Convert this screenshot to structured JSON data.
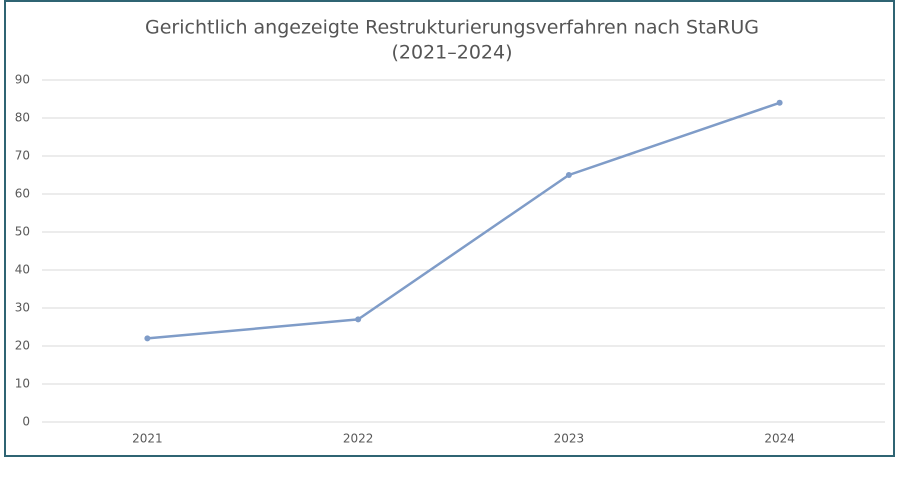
{
  "chart_data": {
    "type": "line",
    "title": [
      "Gerichtlich angezeigte Restrukturierungsverfahren nach StaRUG",
      "(2021–2024)"
    ],
    "categories": [
      "2021",
      "2022",
      "2023",
      "2024"
    ],
    "values": [
      22,
      27,
      65,
      84
    ],
    "color": "#7f9cc8",
    "ylim": [
      0,
      90
    ],
    "yticks": [
      0,
      10,
      20,
      30,
      40,
      50,
      60,
      70,
      80,
      90
    ],
    "grid": true
  }
}
